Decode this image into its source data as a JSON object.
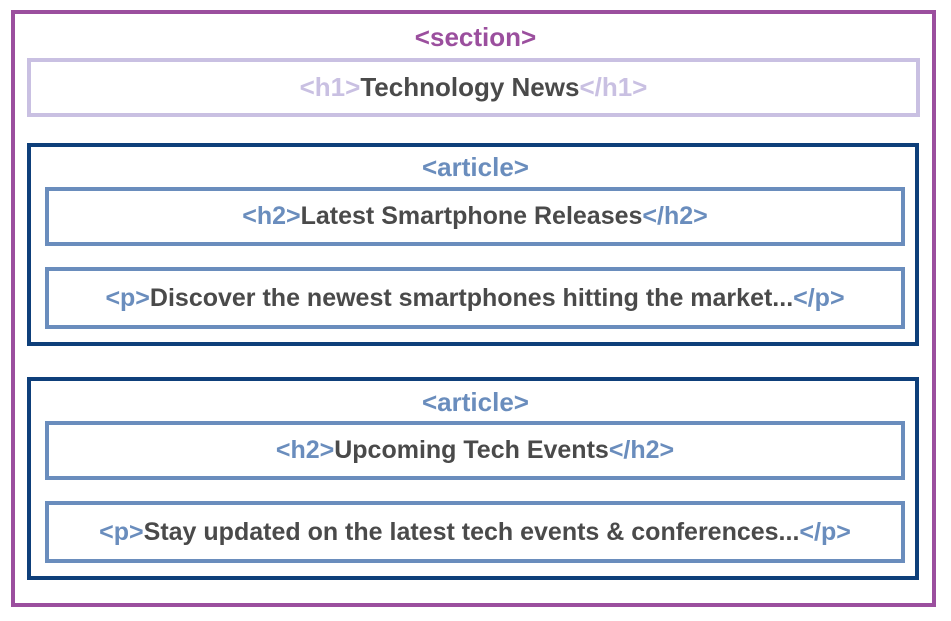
{
  "section": {
    "tag": "<section>",
    "heading": {
      "open": "<h1>",
      "text": "Technology News",
      "close": "</h1>"
    },
    "articles": [
      {
        "tag": "<article>",
        "h2": {
          "open": "<h2>",
          "text": "Latest Smartphone Releases",
          "close": "</h2>"
        },
        "p": {
          "open": "<p>",
          "text": "Discover the newest smartphones hitting the market...",
          "close": "</p>"
        }
      },
      {
        "tag": "<article>",
        "h2": {
          "open": "<h2>",
          "text": "Upcoming Tech Events",
          "close": "</h2>"
        },
        "p": {
          "open": "<p>",
          "text": "Stay updated on the latest tech events & conferences...",
          "close": "</p>"
        }
      }
    ]
  },
  "colors": {
    "section": "#9b4f9e",
    "h1": "#c9c0e2",
    "article": "#0e3f7a",
    "inner": "#6a8dbd",
    "text": "#4a4a4a"
  }
}
